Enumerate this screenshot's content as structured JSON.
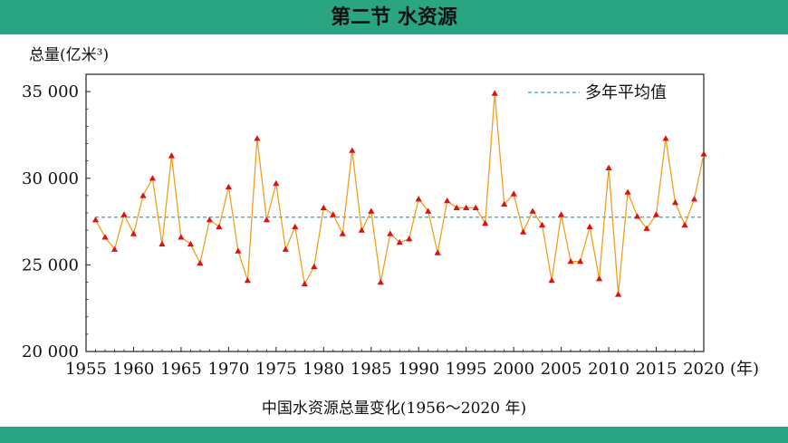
{
  "header": {
    "title": "第二节 水资源"
  },
  "colors": {
    "bar": "#2aa581",
    "line": "#f0a020",
    "marker": "#e01010",
    "average": "#3aa0c8"
  },
  "chart_data": {
    "type": "line",
    "title": "中国水资源总量变化(1956～2020 年)",
    "ylabel": "总量(亿米³)",
    "xlabel": "(年)",
    "xlim": [
      1955,
      2020
    ],
    "ylim": [
      20000,
      36000
    ],
    "x_ticks": [
      1955,
      1960,
      1965,
      1970,
      1975,
      1980,
      1985,
      1990,
      1995,
      2000,
      2005,
      2010,
      2015,
      2020
    ],
    "y_ticks": [
      {
        "value": 20000,
        "label": "20 000"
      },
      {
        "value": 25000,
        "label": "25 000"
      },
      {
        "value": 30000,
        "label": "30 000"
      },
      {
        "value": 35000,
        "label": "35 000"
      }
    ],
    "legend": {
      "label": "多年平均值",
      "position": "top-right"
    },
    "average": 27750,
    "series": [
      {
        "x": [
          1956,
          1957,
          1958,
          1959,
          1960,
          1961,
          1962,
          1963,
          1964,
          1965,
          1966,
          1967,
          1968,
          1969,
          1970,
          1971,
          1972,
          1973,
          1974,
          1975,
          1976,
          1977,
          1978,
          1979,
          1980,
          1981,
          1982,
          1983,
          1984,
          1985,
          1986,
          1987,
          1988,
          1989,
          1990,
          1991,
          1992,
          1993,
          1994,
          1995,
          1996,
          1997,
          1998,
          1999,
          2000,
          2001,
          2002,
          2003,
          2004,
          2005,
          2006,
          2007,
          2008,
          2009,
          2010,
          2011,
          2012,
          2013,
          2014,
          2015,
          2016,
          2017,
          2018,
          2019,
          2020
        ],
        "values": [
          27600,
          26600,
          25900,
          27900,
          26800,
          29000,
          30000,
          26200,
          31300,
          26600,
          26200,
          25100,
          27600,
          27200,
          29500,
          25800,
          24100,
          32300,
          27600,
          29700,
          25900,
          27200,
          23900,
          24900,
          28300,
          27900,
          26800,
          31600,
          27000,
          28100,
          24000,
          26800,
          26300,
          26500,
          28800,
          28100,
          25700,
          28700,
          28300,
          28300,
          28300,
          27400,
          34900,
          28500,
          29100,
          26900,
          28100,
          27300,
          24100,
          27900,
          25200,
          25200,
          27200,
          24200,
          30600,
          23300,
          29200,
          27800,
          27100,
          27900,
          32300,
          28600,
          27300,
          28800,
          31400
        ]
      }
    ]
  }
}
